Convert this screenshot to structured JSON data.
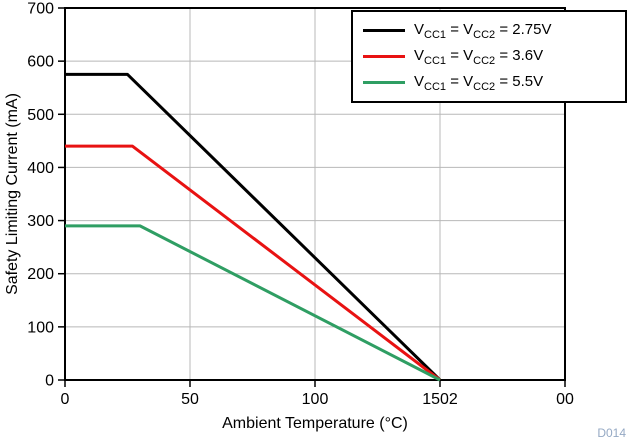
{
  "watermark": "D014",
  "chart_data": {
    "type": "line",
    "title": "",
    "xlabel": "Ambient Temperature (°C)",
    "ylabel": "Safety Limiting Current (mA)",
    "xlim": [
      0,
      200
    ],
    "ylim": [
      0,
      700
    ],
    "x_ticks": [
      0,
      50,
      100,
      150,
      200
    ],
    "x_tick_labels": [
      "0",
      "50",
      "100",
      "1502",
      "00"
    ],
    "y_ticks": [
      0,
      100,
      200,
      300,
      400,
      500,
      600,
      700
    ],
    "y_tick_labels": [
      "0",
      "100",
      "200",
      "300",
      "400",
      "500",
      "600",
      "700"
    ],
    "grid": true,
    "legend_position": "top-right",
    "series": [
      {
        "name": "VCC1 = VCC2 = 2.75V",
        "color": "#000000",
        "x": [
          0,
          25,
          150
        ],
        "y": [
          575,
          575,
          0
        ],
        "label_parts": [
          "V",
          {
            "sub": "CC1"
          },
          " = V",
          {
            "sub": "CC2"
          },
          " = 2.75V"
        ]
      },
      {
        "name": "VCC1 = VCC2 = 3.6V",
        "color": "#e81212",
        "x": [
          0,
          27,
          150
        ],
        "y": [
          440,
          440,
          0
        ],
        "label_parts": [
          "V",
          {
            "sub": "CC1"
          },
          " = V",
          {
            "sub": "CC2"
          },
          " = 3.6V"
        ]
      },
      {
        "name": "VCC1 = VCC2 = 5.5V",
        "color": "#2f9e63",
        "x": [
          0,
          30,
          150
        ],
        "y": [
          290,
          290,
          0
        ],
        "label_parts": [
          "V",
          {
            "sub": "CC1"
          },
          " = V",
          {
            "sub": "CC2"
          },
          " = 5.5V"
        ]
      }
    ]
  }
}
